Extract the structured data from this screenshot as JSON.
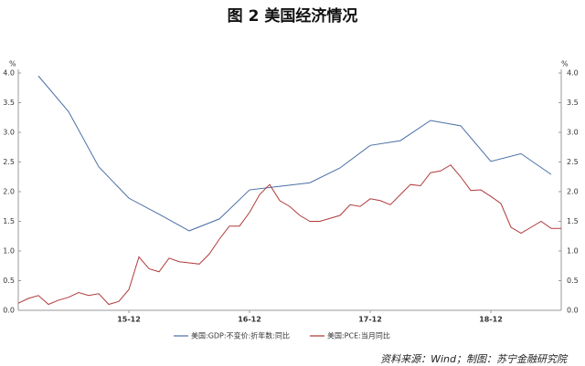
{
  "chart_data": {
    "type": "line",
    "title": "图 2  美国经济情况",
    "y_unit": "%",
    "y2_unit": "%",
    "xlim": [
      "15-01",
      "19-07"
    ],
    "xticks": [
      "15-12",
      "16-12",
      "17-12",
      "18-12"
    ],
    "ylim": [
      0,
      4
    ],
    "yticks": [
      {
        "value": 0,
        "label": "0.0"
      },
      0.5,
      {
        "value": 1,
        "label": "1.0"
      },
      1.5,
      {
        "value": 2,
        "label": "2.0"
      },
      2.5,
      {
        "value": 3,
        "label": "3.0"
      },
      3.5,
      {
        "value": 4,
        "label": "4.0"
      }
    ],
    "y2lim": [
      0,
      4
    ],
    "y2ticks": [
      {
        "value": 0,
        "label": "0.0"
      },
      0.5,
      {
        "value": 1,
        "label": "1.0"
      },
      1.5,
      {
        "value": 2,
        "label": "2.0"
      },
      2.5,
      {
        "value": 3,
        "label": "3.0"
      },
      3.5,
      {
        "value": 4,
        "label": "4.0"
      }
    ],
    "grid": false,
    "series": [
      {
        "name": "美国:GDP:不变价:折年数:同比",
        "color": "#4a6fa5",
        "x": [
          "15-03",
          "15-06",
          "15-09",
          "15-12",
          "16-03",
          "16-06",
          "16-09",
          "16-12",
          "17-03",
          "17-06",
          "17-09",
          "17-12",
          "18-03",
          "18-06",
          "18-09",
          "18-12",
          "19-03",
          "19-06"
        ],
        "values": [
          3.95,
          3.35,
          2.42,
          1.89,
          1.62,
          1.34,
          1.54,
          2.03,
          2.09,
          2.15,
          2.4,
          2.78,
          2.86,
          3.2,
          3.11,
          2.51,
          2.64,
          2.29
        ]
      },
      {
        "name": "美国:PCE:当月同比",
        "color": "#b03a3a",
        "x": [
          "15-01",
          "15-02",
          "15-03",
          "15-04",
          "15-05",
          "15-06",
          "15-07",
          "15-08",
          "15-09",
          "15-10",
          "15-11",
          "15-12",
          "16-01",
          "16-02",
          "16-03",
          "16-04",
          "16-05",
          "16-06",
          "16-07",
          "16-08",
          "16-09",
          "16-10",
          "16-11",
          "16-12",
          "17-01",
          "17-02",
          "17-03",
          "17-04",
          "17-05",
          "17-06",
          "17-07",
          "17-08",
          "17-09",
          "17-10",
          "17-11",
          "17-12",
          "18-01",
          "18-02",
          "18-03",
          "18-04",
          "18-05",
          "18-06",
          "18-07",
          "18-08",
          "18-09",
          "18-10",
          "18-11",
          "18-12",
          "19-01",
          "19-02",
          "19-03",
          "19-04",
          "19-05",
          "19-06",
          "19-07"
        ],
        "values": [
          0.12,
          0.2,
          0.25,
          0.1,
          0.17,
          0.22,
          0.3,
          0.25,
          0.28,
          0.1,
          0.15,
          0.35,
          0.9,
          0.7,
          0.65,
          0.88,
          0.82,
          0.8,
          0.78,
          0.95,
          1.2,
          1.42,
          1.42,
          1.65,
          1.95,
          2.12,
          1.85,
          1.75,
          1.6,
          1.5,
          1.5,
          1.55,
          1.6,
          1.78,
          1.75,
          1.88,
          1.85,
          1.78,
          1.95,
          2.12,
          2.1,
          2.32,
          2.35,
          2.45,
          2.25,
          2.02,
          2.03,
          1.92,
          1.8,
          1.4,
          1.3,
          1.4,
          1.5,
          1.38,
          1.38
        ]
      }
    ],
    "legend": "bottom",
    "source": "资料来源：Wind；制图：苏宁金融研究院"
  }
}
